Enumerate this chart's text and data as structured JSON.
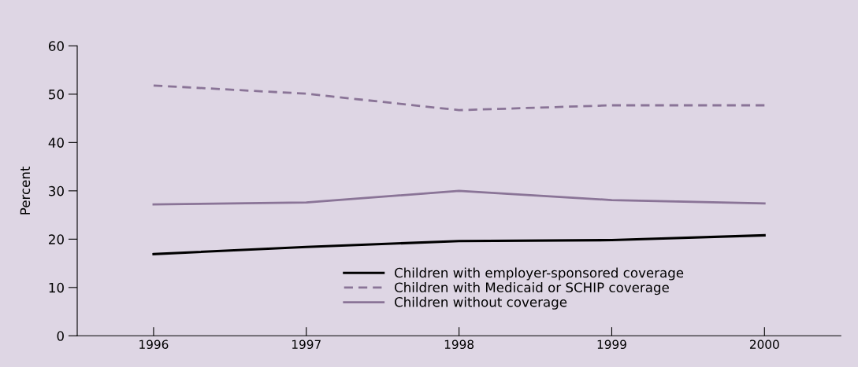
{
  "chart_data": {
    "type": "line",
    "ylabel": "Percent",
    "x": [
      1996,
      1997,
      1998,
      1999,
      2000
    ],
    "series": [
      {
        "name": "Children with employer-sponsored coverage",
        "color": "#000000",
        "line_style": "solid",
        "values": [
          16.9,
          18.4,
          19.6,
          19.8,
          20.8
        ]
      },
      {
        "name": "Children with Medicaid or SCHIP coverage",
        "color": "#8a7497",
        "line_style": "dashed",
        "values": [
          51.8,
          50.1,
          46.7,
          47.7,
          47.7
        ]
      },
      {
        "name": "Children without coverage",
        "color": "#8a7497",
        "line_style": "solid",
        "values": [
          27.2,
          27.6,
          30.0,
          28.1,
          27.4
        ]
      }
    ],
    "xlim": [
      1995.5,
      2000.5
    ],
    "xticks": [
      1996,
      1997,
      1998,
      1999,
      2000
    ],
    "ylim": [
      0,
      60
    ],
    "yticks": [
      0,
      10,
      20,
      30,
      40,
      50,
      60
    ],
    "grid": false,
    "legend": "bottom right",
    "marker": "none"
  }
}
